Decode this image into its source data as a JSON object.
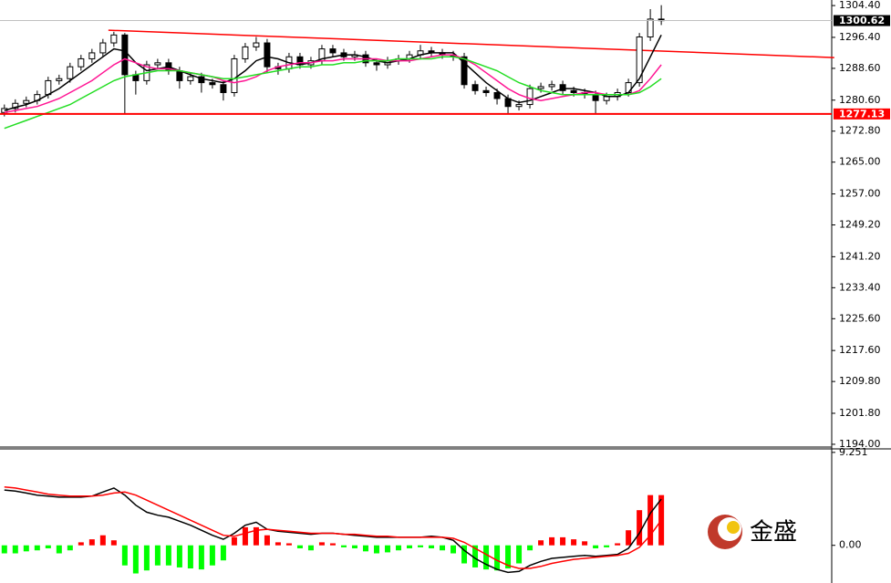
{
  "chart_data": [
    {
      "type": "candlestick",
      "xlim": [
        -0.4,
        75.4
      ],
      "ylim": [
        1193.3,
        1305.8
      ],
      "yticks": [
        {
          "value": 1304.4,
          "label": "1304.40"
        },
        {
          "value": 1296.4,
          "label": "1296.40"
        },
        {
          "value": 1288.6,
          "label": "1288.60"
        },
        {
          "value": 1280.6,
          "label": "1280.60"
        },
        {
          "value": 1272.8,
          "label": "1272.80"
        },
        {
          "value": 1265,
          "label": "1265.00"
        },
        {
          "value": 1257,
          "label": "1257.00"
        },
        {
          "value": 1249.2,
          "label": "1249.20"
        },
        {
          "value": 1241.2,
          "label": "1241.20"
        },
        {
          "value": 1233.4,
          "label": "1233.40"
        },
        {
          "value": 1225.6,
          "label": "1225.60"
        },
        {
          "value": 1217.6,
          "label": "1217.60"
        },
        {
          "value": 1209.8,
          "label": "1209.80"
        },
        {
          "value": 1201.8,
          "label": "1201.80"
        },
        {
          "value": 1194,
          "label": "1194.00"
        }
      ],
      "up_color": "#ffffff",
      "down_color": "#000000",
      "open": [
        1277.5,
        1278.5,
        1279.8,
        1280.5,
        1282.0,
        1285.5,
        1286.0,
        1289.0,
        1291.0,
        1292.5,
        1295.0,
        1297.0,
        1287.0,
        1285.5,
        1289.5,
        1290.0,
        1288.0,
        1285.5,
        1286.5,
        1285.0,
        1284.5,
        1282.5,
        1291.0,
        1294.0,
        1295.0,
        1289.0,
        1288.5,
        1291.5,
        1289.5,
        1290.5,
        1293.5,
        1292.5,
        1291.5,
        1292.0,
        1290.0,
        1289.5,
        1290.5,
        1291.0,
        1292.0,
        1293.0,
        1292.5,
        1292.0,
        1291.5,
        1284.5,
        1283.0,
        1282.5,
        1281.0,
        1279.0,
        1279.5,
        1283.5,
        1284.0,
        1284.5,
        1283.0,
        1282.5,
        1282.0,
        1280.5,
        1281.5,
        1282.5,
        1285.0,
        1296.5,
        1301.0
      ],
      "high": [
        1279.5,
        1280.8,
        1281.5,
        1283.0,
        1286.5,
        1287.0,
        1290.0,
        1292.0,
        1293.5,
        1296.0,
        1297.8,
        1297.5,
        1288.0,
        1290.5,
        1291.0,
        1291.0,
        1289.0,
        1287.5,
        1287.5,
        1286.0,
        1285.5,
        1292.0,
        1295.0,
        1296.5,
        1296.0,
        1290.0,
        1292.5,
        1292.5,
        1291.5,
        1294.5,
        1294.5,
        1293.5,
        1293.0,
        1293.0,
        1291.0,
        1291.5,
        1292.0,
        1293.0,
        1294.5,
        1294.0,
        1293.5,
        1293.0,
        1292.5,
        1285.5,
        1284.0,
        1283.5,
        1282.0,
        1280.5,
        1284.5,
        1285.0,
        1285.5,
        1285.5,
        1284.0,
        1283.5,
        1283.0,
        1282.5,
        1283.5,
        1286.0,
        1297.5,
        1303.5,
        1304.5
      ],
      "low": [
        1276.5,
        1277.5,
        1278.8,
        1279.5,
        1281.0,
        1284.5,
        1285.0,
        1288.0,
        1290.0,
        1291.5,
        1294.0,
        1277.1,
        1282.0,
        1284.5,
        1288.5,
        1287.0,
        1283.5,
        1284.5,
        1282.5,
        1283.5,
        1280.5,
        1281.5,
        1290.0,
        1293.0,
        1287.5,
        1287.0,
        1287.5,
        1288.5,
        1288.5,
        1289.5,
        1291.5,
        1290.5,
        1290.5,
        1289.0,
        1288.0,
        1288.5,
        1289.5,
        1290.0,
        1291.0,
        1291.5,
        1291.0,
        1290.5,
        1283.5,
        1282.0,
        1281.5,
        1279.5,
        1277.1,
        1278.0,
        1278.5,
        1282.5,
        1283.0,
        1282.0,
        1281.5,
        1281.0,
        1277.1,
        1279.5,
        1280.5,
        1281.5,
        1284.0,
        1295.5,
        1299.5
      ],
      "close": [
        1278.5,
        1279.8,
        1280.5,
        1282.0,
        1285.5,
        1286.0,
        1289.0,
        1291.0,
        1292.5,
        1295.0,
        1297.0,
        1287.0,
        1285.5,
        1289.5,
        1290.0,
        1288.0,
        1285.5,
        1286.5,
        1285.0,
        1284.5,
        1282.5,
        1291.0,
        1294.0,
        1295.0,
        1289.0,
        1288.5,
        1291.5,
        1289.5,
        1290.5,
        1293.5,
        1292.5,
        1291.5,
        1292.0,
        1290.0,
        1289.5,
        1290.5,
        1291.0,
        1292.0,
        1293.0,
        1292.5,
        1292.0,
        1291.5,
        1284.5,
        1283.0,
        1282.5,
        1281.0,
        1279.0,
        1279.5,
        1283.5,
        1284.0,
        1284.5,
        1283.0,
        1282.5,
        1282.0,
        1280.5,
        1281.5,
        1282.5,
        1285.0,
        1296.5,
        1301.0,
        1300.6
      ],
      "series": [
        {
          "color": "#000000",
          "values": [
            1278,
            1278.8,
            1279.5,
            1280.5,
            1282,
            1283.5,
            1285.5,
            1287.5,
            1289.5,
            1291.5,
            1293.5,
            1293,
            1290,
            1288,
            1288.5,
            1289,
            1288,
            1287,
            1286,
            1285.5,
            1285,
            1286,
            1288,
            1290.5,
            1291.5,
            1291,
            1290,
            1289.5,
            1290,
            1291,
            1291.5,
            1292,
            1292,
            1291.5,
            1290.5,
            1290,
            1290.5,
            1291,
            1292,
            1292.5,
            1292.5,
            1292.5,
            1290,
            1287.5,
            1285,
            1283,
            1281,
            1280,
            1280.5,
            1281.5,
            1282.5,
            1283.5,
            1283.5,
            1283,
            1282.5,
            1281.5,
            1281.5,
            1282.5,
            1286,
            1291.5,
            1297
          ]
        },
        {
          "color": "#ff1493",
          "values": [
            1277.5,
            1278,
            1278.5,
            1279,
            1280,
            1281,
            1282.5,
            1284,
            1285.5,
            1287.5,
            1289.5,
            1291,
            1290,
            1289,
            1288.5,
            1288.5,
            1288,
            1287.5,
            1287,
            1286.5,
            1285.5,
            1285,
            1285.5,
            1286.5,
            1288,
            1289,
            1289.5,
            1290,
            1290,
            1290.5,
            1290.5,
            1291,
            1291,
            1291,
            1291,
            1290.5,
            1290.5,
            1290.5,
            1291,
            1291.5,
            1292,
            1292,
            1291,
            1289.5,
            1287.5,
            1285.5,
            1283.5,
            1282,
            1281,
            1280.5,
            1281,
            1281.5,
            1282,
            1282.5,
            1282.5,
            1282,
            1282,
            1282,
            1283,
            1286,
            1289.5
          ]
        },
        {
          "color": "#22dd22",
          "values": [
            1273.5,
            1274.5,
            1275.5,
            1276.5,
            1277.5,
            1278.5,
            1279.5,
            1281,
            1282.5,
            1284,
            1285.5,
            1286.5,
            1287,
            1287.5,
            1288,
            1288,
            1288,
            1287.5,
            1287,
            1286.5,
            1286,
            1286,
            1286.5,
            1287,
            1287.5,
            1288,
            1288.5,
            1289,
            1289,
            1289.5,
            1289.5,
            1290,
            1290,
            1290.5,
            1290.5,
            1290.5,
            1291,
            1291,
            1291,
            1291,
            1291.5,
            1291.5,
            1291,
            1290,
            1289,
            1288,
            1286.5,
            1285,
            1284,
            1283,
            1282.5,
            1282,
            1282,
            1282,
            1282,
            1282,
            1282,
            1282,
            1282.5,
            1284,
            1286
          ]
        }
      ],
      "trendline": {
        "x": [
          9.5,
          75.8
        ],
        "y": [
          1298.2,
          1291.3
        ],
        "color": "#ff0000"
      },
      "hlines": [
        {
          "value": 1300.62,
          "color": "#000000",
          "line": "#c0c0c0"
        },
        {
          "value": 1277.13,
          "color": "#ff0000",
          "line": "#ff0000"
        }
      ]
    },
    {
      "type": "macd",
      "xlim": [
        -0.4,
        75.4
      ],
      "ylim": [
        -3.75,
        9.6
      ],
      "yticks": [
        9.251,
        {
          "value": 0,
          "label": "0.00"
        }
      ],
      "up_color": "#ff0000",
      "down_color": "#00ff00",
      "histogram": [
        -0.8,
        -0.8,
        -0.6,
        -0.5,
        -0.3,
        -0.8,
        -0.5,
        0.3,
        0.6,
        1.0,
        0.5,
        -2.0,
        -2.8,
        -2.5,
        -2.0,
        -2.0,
        -2.2,
        -2.3,
        -2.4,
        -2.0,
        -1.5,
        0.8,
        1.8,
        1.8,
        1.0,
        0.3,
        0.2,
        -0.3,
        -0.5,
        0.3,
        0.2,
        -0.2,
        -0.3,
        -0.6,
        -0.8,
        -0.7,
        -0.5,
        -0.3,
        -0.2,
        -0.3,
        -0.5,
        -0.8,
        -1.8,
        -2.2,
        -2.4,
        -2.5,
        -2.3,
        -1.8,
        -0.5,
        0.5,
        0.8,
        0.8,
        0.6,
        0.4,
        -0.3,
        -0.2,
        0.2,
        1.5,
        3.5,
        5.0,
        5.0
      ],
      "series": [
        {
          "color": "#000000",
          "values": [
            5.5,
            5.4,
            5.2,
            5.0,
            4.9,
            4.8,
            4.8,
            4.8,
            4.9,
            5.3,
            5.7,
            5.0,
            4.0,
            3.3,
            3.0,
            2.8,
            2.4,
            2.0,
            1.5,
            1.0,
            0.6,
            1.2,
            2.0,
            2.3,
            1.6,
            1.4,
            1.3,
            1.2,
            1.1,
            1.2,
            1.2,
            1.1,
            1.0,
            0.9,
            0.8,
            0.8,
            0.8,
            0.8,
            0.8,
            0.9,
            0.8,
            0.5,
            -0.5,
            -1.3,
            -1.9,
            -2.4,
            -2.7,
            -2.6,
            -2.0,
            -1.6,
            -1.3,
            -1.2,
            -1.1,
            -1.0,
            -1.1,
            -1.0,
            -0.9,
            -0.3,
            1.2,
            3.2,
            4.6
          ]
        },
        {
          "color": "#ff0000",
          "values": [
            5.8,
            5.7,
            5.5,
            5.3,
            5.1,
            5.0,
            4.9,
            4.9,
            4.9,
            5.0,
            5.2,
            5.3,
            5.0,
            4.5,
            4.0,
            3.5,
            3.0,
            2.5,
            2.0,
            1.5,
            1.0,
            0.9,
            1.2,
            1.5,
            1.6,
            1.5,
            1.4,
            1.3,
            1.2,
            1.2,
            1.2,
            1.1,
            1.1,
            1.0,
            0.9,
            0.9,
            0.8,
            0.8,
            0.8,
            0.8,
            0.8,
            0.7,
            0.3,
            -0.3,
            -0.9,
            -1.5,
            -2.0,
            -2.3,
            -2.3,
            -2.1,
            -1.8,
            -1.6,
            -1.4,
            -1.3,
            -1.2,
            -1.1,
            -1.0,
            -0.8,
            -0.2,
            1.0,
            2.5
          ]
        }
      ]
    }
  ],
  "logo": {
    "text": "金盛"
  }
}
